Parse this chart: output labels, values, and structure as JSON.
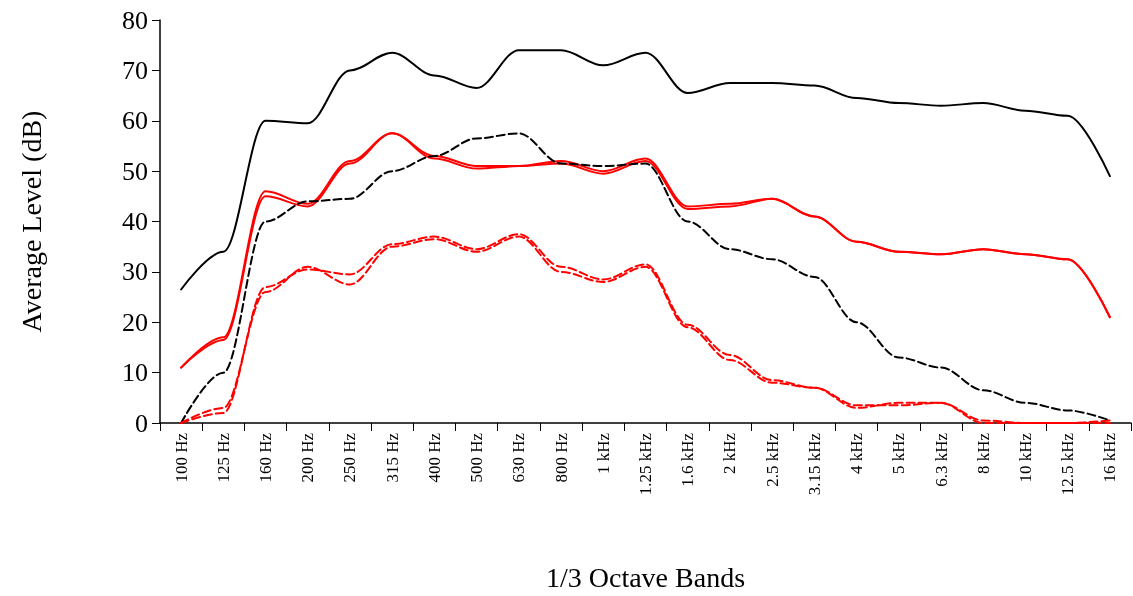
{
  "chart_data": {
    "type": "line",
    "xlabel": "1/3 Octave Bands",
    "ylabel": "Average Level (dB)",
    "categories": [
      "100 Hz",
      "125 Hz",
      "160 Hz",
      "200 Hz",
      "250 Hz",
      "315 Hz",
      "400 Hz",
      "500 Hz",
      "630 Hz",
      "800 Hz",
      "1 kHz",
      "1.25 kHz",
      "1.6 kHz",
      "2 kHz",
      "2.5 kHz",
      "3.15 kHz",
      "4 kHz",
      "5 kHz",
      "6.3 kHz",
      "8 kHz",
      "10 kHz",
      "12.5 kHz",
      "16 kHz"
    ],
    "series": [
      {
        "color": "#000000",
        "line_style": "solid",
        "values": [
          26.5,
          34,
          60,
          59.5,
          70,
          73.5,
          69,
          66.5,
          74,
          74,
          71,
          73.5,
          65.5,
          67.5,
          67.5,
          67,
          64.5,
          63.5,
          63,
          63.5,
          62,
          61,
          49
        ]
      },
      {
        "color": "#ff0000",
        "line_style": "solid",
        "values": [
          11,
          17,
          46,
          43.5,
          52,
          57.5,
          53,
          51,
          51,
          52,
          50,
          52.5,
          43,
          43.5,
          44.5,
          41,
          36,
          34,
          33.5,
          34.5,
          33.5,
          32.5,
          21
        ]
      },
      {
        "color": "#ff0000",
        "line_style": "solid",
        "values": [
          11,
          16.5,
          45,
          43,
          51.5,
          57.5,
          52.5,
          50.5,
          51,
          51.5,
          49.5,
          52,
          42.5,
          43,
          44.5,
          41,
          36,
          34,
          33.5,
          34.5,
          33.5,
          32.5,
          21
        ]
      },
      {
        "color": "#000000",
        "line_style": "dashed",
        "values": [
          0,
          10,
          40,
          44,
          44.5,
          50,
          53,
          56.5,
          57.5,
          51.5,
          51,
          51.5,
          40,
          34.5,
          32.5,
          29,
          20,
          13,
          11,
          6.5,
          4,
          2.5,
          0.5
        ]
      },
      {
        "color": "#ff0000",
        "line_style": "dashed",
        "values": [
          0,
          2,
          27,
          30.5,
          29.5,
          35.5,
          37,
          34.5,
          37.5,
          31,
          28.5,
          31.5,
          19.5,
          13.5,
          8.5,
          7,
          3.5,
          3.5,
          4,
          0.5,
          0,
          0,
          0.5
        ]
      },
      {
        "color": "#ff0000",
        "line_style": "dashed",
        "values": [
          0,
          3,
          26,
          31,
          27.5,
          35,
          36.5,
          34,
          37,
          30,
          28,
          31,
          19,
          12.5,
          8,
          7,
          3,
          4,
          4,
          0,
          0,
          0,
          0
        ]
      }
    ],
    "ylim": [
      0,
      80
    ],
    "yticks": [
      0,
      10,
      20,
      30,
      40,
      50,
      60,
      70,
      80
    ],
    "grid": false,
    "marker": "none"
  }
}
